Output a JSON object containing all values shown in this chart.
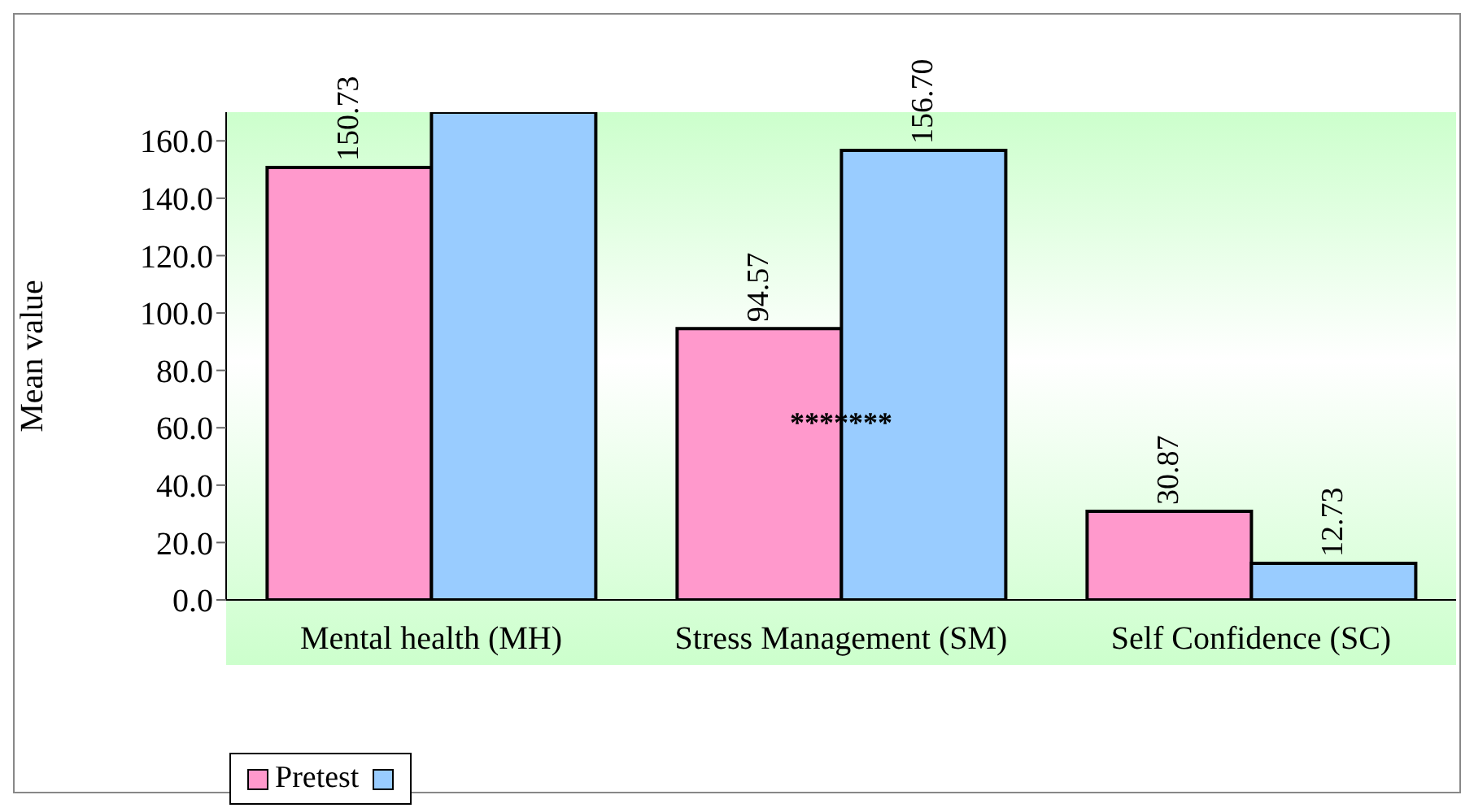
{
  "chart_data": {
    "type": "bar",
    "ylabel": "Mean value",
    "categories": [
      "Mental health (MH)",
      "Stress Management (SM)",
      "Self Confidence (SC)"
    ],
    "series": [
      {
        "name": "Pretest",
        "color": "#ff99cc",
        "values": [
          150.73,
          94.57,
          30.87
        ],
        "value_labels": [
          "150.73",
          "94.57",
          "30.87"
        ]
      },
      {
        "color": "#99ccff",
        "values": [
          170,
          156.7,
          12.73
        ],
        "value_labels": [
          null,
          "156.70",
          "12.73"
        ]
      }
    ],
    "ylim": [
      0,
      170
    ],
    "yticks": [
      {
        "value": 0,
        "label": "0.0"
      },
      {
        "value": 20,
        "label": "20.0"
      },
      {
        "value": 40,
        "label": "40.0"
      },
      {
        "value": 60,
        "label": "60.0"
      },
      {
        "value": 80,
        "label": "80.0"
      },
      {
        "value": 100,
        "label": "100.0"
      },
      {
        "value": 120,
        "label": "120.0"
      },
      {
        "value": 140,
        "label": "140.0"
      },
      {
        "value": 160,
        "label": "160.0"
      }
    ],
    "annotations": [
      {
        "text": "*******",
        "x": "Stress Management (SM)",
        "y": 62
      }
    ],
    "grid": false,
    "legend": "bottom left"
  }
}
